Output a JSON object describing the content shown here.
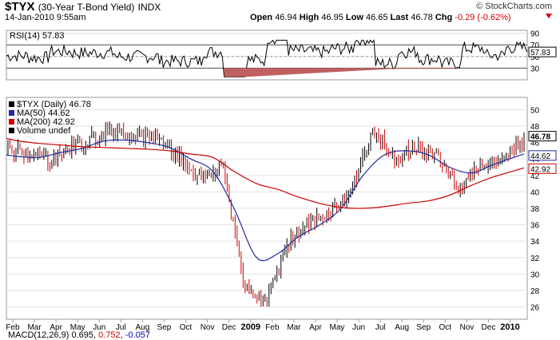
{
  "header": {
    "symbol": "$TYX",
    "name": "(30-Year T-Bond Yield)",
    "exchange": "INDX",
    "watermark": "© StockCharts.com",
    "datetime": "14-Jan-2010 9:55am",
    "open_label": "Open",
    "open": "46.94",
    "high_label": "High",
    "high": "46.95",
    "low_label": "Low",
    "low": "46.65",
    "last_label": "Last",
    "last": "46.78",
    "chg_label": "Chg",
    "chg": "-0.29 (-0.62%)"
  },
  "colors": {
    "price": "#000000",
    "up": "#000000",
    "down": "#cc0000",
    "ma50": "#1f2aa0",
    "ma200": "#cc0000",
    "rsi": "#000000",
    "rsi_fill": "#c06060"
  },
  "rsi": {
    "label": "RSI(14) 57.83",
    "last_value": "57.83",
    "ylim": [
      10,
      95
    ],
    "ticks": [
      "90",
      "70",
      "50",
      "30"
    ],
    "levels": [
      70,
      30
    ]
  },
  "price_panel": {
    "legend": [
      "$TYX (Daily) 46.78",
      "MA(50) 44.62",
      "MA(200) 42.92",
      "Volume undef"
    ],
    "ylim": [
      24.5,
      51.5
    ],
    "yticks": [
      "50",
      "48",
      "46",
      "44",
      "42",
      "40",
      "38",
      "36",
      "34",
      "32",
      "30",
      "28",
      "26"
    ],
    "last_labels": [
      "46.78",
      "44.62",
      "42.92"
    ]
  },
  "chart_data": {
    "type": "line",
    "x": [
      "2009-01-15",
      "2009-02-01",
      "2009-03-01",
      "2009-04-01",
      "2009-05-01",
      "2009-06-01",
      "2009-07-01",
      "2009-08-01",
      "2009-09-01",
      "2009-10-01",
      "2009-11-01",
      "2009-12-01",
      "2009-01-02",
      "2009-02-01",
      "2009-03-01",
      "2009-04-01",
      "2009-05-01",
      "2009-06-01",
      "2009-07-01",
      "2009-08-01",
      "2009-09-01",
      "2009-10-01",
      "2009-11-01",
      "2009-12-01",
      "2010-01-14"
    ],
    "series": [
      {
        "name": "$TYX (Daily)",
        "values": [
          45.0,
          44.8,
          43.8,
          45.5,
          46.5,
          47.6,
          47.0,
          46.5,
          44.0,
          41.5,
          43.0,
          28.5,
          26.5,
          34.0,
          36.0,
          37.5,
          40.5,
          47.5,
          44.0,
          45.5,
          44.0,
          40.5,
          43.5,
          43.5,
          46.78
        ]
      },
      {
        "name": "MA(50)",
        "values": [
          44.5,
          44.3,
          44.2,
          44.8,
          45.3,
          46.2,
          46.3,
          46.0,
          45.4,
          44.0,
          42.5,
          38.0,
          32.0,
          32.5,
          34.5,
          36.0,
          38.0,
          42.0,
          44.5,
          45.0,
          44.5,
          43.0,
          42.3,
          43.3,
          44.62
        ]
      },
      {
        "name": "MA(200)",
        "values": [
          46.5,
          46.2,
          45.9,
          45.7,
          45.5,
          45.4,
          45.3,
          45.2,
          45.0,
          44.6,
          44.2,
          42.5,
          41.0,
          40.3,
          39.4,
          38.6,
          38.1,
          38.0,
          38.2,
          38.6,
          38.9,
          39.6,
          40.8,
          41.8,
          42.92
        ]
      }
    ],
    "xlabels": [
      "Feb",
      "Mar",
      "Apr",
      "May",
      "Jun",
      "Jul",
      "Aug",
      "Sep",
      "Oct",
      "Nov",
      "Dec",
      "2009",
      "Feb",
      "Mar",
      "Apr",
      "May",
      "Jun",
      "Jul",
      "Aug",
      "Sep",
      "Oct",
      "Nov",
      "Dec",
      "2010"
    ],
    "ylim": [
      24.5,
      51.5
    ],
    "grid": true
  },
  "macd": {
    "label": "MACD(12,26,9)",
    "v1": "0.695",
    "v2": "0.752",
    "v3": "-0.057",
    "sep1": ", ",
    "sep2": ", "
  }
}
